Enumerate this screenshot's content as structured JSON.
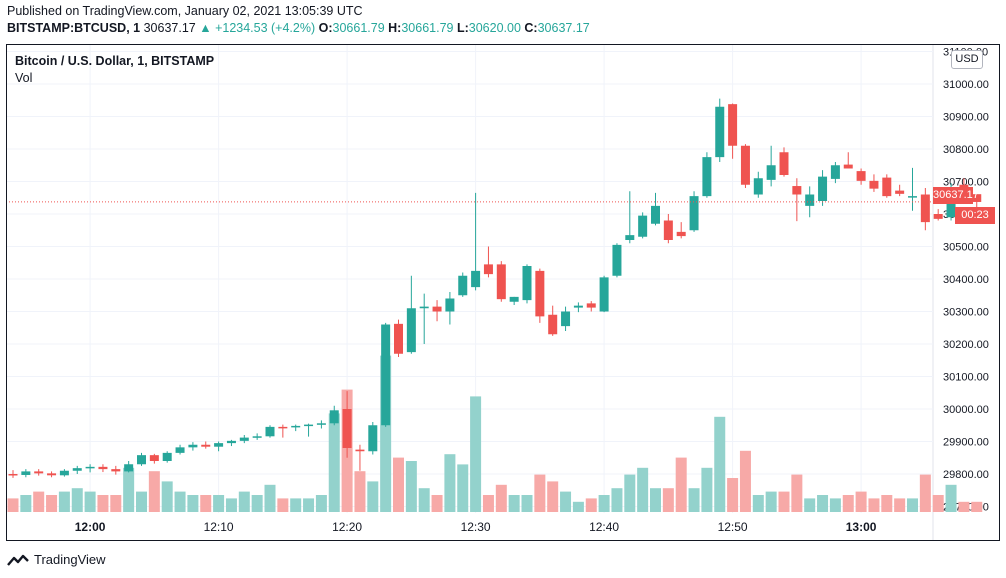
{
  "header": {
    "published": "Published on TradingView.com, January 02, 2021 13:05:39 UTC",
    "symbol": "BITSTAMP:BTCUSD, 1",
    "last": "30637.17",
    "change": "▲ +1234.53 (+4.2%)",
    "o_label": "O:",
    "o": "30661.79",
    "h_label": "H:",
    "h": "30661.79",
    "l_label": "L:",
    "l": "30620.00",
    "c_label": "C:",
    "c": "30637.17"
  },
  "legend": {
    "title": "Bitcoin / U.S. Dollar, 1, BITSTAMP",
    "volume": "Vol"
  },
  "axis": {
    "currency": "USD",
    "price_tag": "30637.17",
    "countdown": "00:23"
  },
  "footer": {
    "brand": "TradingView"
  },
  "colors": {
    "up": "#26a69a",
    "down": "#ef5350",
    "up_vol": "#93d2cc",
    "down_vol": "#f7a9a7"
  },
  "chart_data": {
    "type": "candlestick",
    "yticks": [
      "31100.00",
      "31000.00",
      "30900.00",
      "30800.00",
      "30700.00",
      "30600.00",
      "30500.00",
      "30400.00",
      "30300.00",
      "30200.00",
      "30100.00",
      "30000.00",
      "29900.00",
      "29800.00",
      "29700.00"
    ],
    "xticks": [
      "12:00",
      "12:10",
      "12:20",
      "12:30",
      "12:40",
      "12:50",
      "13:00"
    ],
    "xtick_bold": [
      "12:00",
      "13:00"
    ],
    "ylim": [
      29680,
      31120
    ],
    "candles": [
      {
        "o": 29800,
        "h": 29812,
        "l": 29788,
        "c": 29797,
        "v": 0.4
      },
      {
        "o": 29797,
        "h": 29815,
        "l": 29790,
        "c": 29808,
        "v": 0.5
      },
      {
        "o": 29808,
        "h": 29815,
        "l": 29795,
        "c": 29802,
        "v": 0.6
      },
      {
        "o": 29802,
        "h": 29808,
        "l": 29790,
        "c": 29796,
        "v": 0.5
      },
      {
        "o": 29796,
        "h": 29815,
        "l": 29792,
        "c": 29810,
        "v": 0.6
      },
      {
        "o": 29810,
        "h": 29825,
        "l": 29800,
        "c": 29818,
        "v": 0.7
      },
      {
        "o": 29818,
        "h": 29830,
        "l": 29805,
        "c": 29822,
        "v": 0.6
      },
      {
        "o": 29822,
        "h": 29830,
        "l": 29806,
        "c": 29815,
        "v": 0.5
      },
      {
        "o": 29815,
        "h": 29825,
        "l": 29798,
        "c": 29808,
        "v": 0.5
      },
      {
        "o": 29808,
        "h": 29840,
        "l": 29805,
        "c": 29830,
        "v": 1.3
      },
      {
        "o": 29830,
        "h": 29865,
        "l": 29825,
        "c": 29858,
        "v": 0.6
      },
      {
        "o": 29858,
        "h": 29862,
        "l": 29832,
        "c": 29840,
        "v": 1.2
      },
      {
        "o": 29840,
        "h": 29870,
        "l": 29835,
        "c": 29865,
        "v": 0.9
      },
      {
        "o": 29865,
        "h": 29890,
        "l": 29860,
        "c": 29882,
        "v": 0.6
      },
      {
        "o": 29882,
        "h": 29898,
        "l": 29872,
        "c": 29890,
        "v": 0.5
      },
      {
        "o": 29890,
        "h": 29900,
        "l": 29878,
        "c": 29884,
        "v": 0.5
      },
      {
        "o": 29884,
        "h": 29900,
        "l": 29870,
        "c": 29895,
        "v": 0.5
      },
      {
        "o": 29895,
        "h": 29905,
        "l": 29886,
        "c": 29902,
        "v": 0.4
      },
      {
        "o": 29902,
        "h": 29920,
        "l": 29895,
        "c": 29912,
        "v": 0.6
      },
      {
        "o": 29912,
        "h": 29925,
        "l": 29905,
        "c": 29916,
        "v": 0.5
      },
      {
        "o": 29916,
        "h": 29950,
        "l": 29912,
        "c": 29945,
        "v": 0.8
      },
      {
        "o": 29945,
        "h": 29952,
        "l": 29912,
        "c": 29944,
        "v": 0.4
      },
      {
        "o": 29944,
        "h": 29952,
        "l": 29932,
        "c": 29948,
        "v": 0.4
      },
      {
        "o": 29948,
        "h": 29955,
        "l": 29915,
        "c": 29952,
        "v": 0.4
      },
      {
        "o": 29952,
        "h": 29965,
        "l": 29940,
        "c": 29956,
        "v": 0.5
      },
      {
        "o": 29956,
        "h": 30010,
        "l": 29950,
        "c": 29996,
        "v": 2.9
      },
      {
        "o": 30000,
        "h": 30055,
        "l": 29850,
        "c": 29880,
        "v": 3.6
      },
      {
        "o": 29875,
        "h": 29890,
        "l": 29810,
        "c": 29870,
        "v": 1.2
      },
      {
        "o": 29870,
        "h": 29960,
        "l": 29860,
        "c": 29950,
        "v": 0.9
      },
      {
        "o": 29950,
        "h": 30265,
        "l": 29945,
        "c": 30260,
        "v": 4.6
      },
      {
        "o": 30262,
        "h": 30275,
        "l": 30160,
        "c": 30170,
        "v": 1.6
      },
      {
        "o": 30175,
        "h": 30410,
        "l": 30170,
        "c": 30310,
        "v": 1.5
      },
      {
        "o": 30310,
        "h": 30355,
        "l": 30200,
        "c": 30315,
        "v": 0.7
      },
      {
        "o": 30315,
        "h": 30335,
        "l": 30270,
        "c": 30300,
        "v": 0.5
      },
      {
        "o": 30300,
        "h": 30360,
        "l": 30260,
        "c": 30340,
        "v": 1.7
      },
      {
        "o": 30350,
        "h": 30420,
        "l": 30345,
        "c": 30410,
        "v": 1.4
      },
      {
        "o": 30375,
        "h": 30665,
        "l": 30365,
        "c": 30425,
        "v": 3.4
      },
      {
        "o": 30445,
        "h": 30500,
        "l": 30405,
        "c": 30415,
        "v": 0.5
      },
      {
        "o": 30445,
        "h": 30455,
        "l": 30330,
        "c": 30338,
        "v": 0.8
      },
      {
        "o": 30330,
        "h": 30345,
        "l": 30320,
        "c": 30345,
        "v": 0.5
      },
      {
        "o": 30335,
        "h": 30445,
        "l": 30325,
        "c": 30440,
        "v": 0.5
      },
      {
        "o": 30425,
        "h": 30432,
        "l": 30265,
        "c": 30285,
        "v": 1.1
      },
      {
        "o": 30290,
        "h": 30318,
        "l": 30225,
        "c": 30230,
        "v": 0.9
      },
      {
        "o": 30255,
        "h": 30315,
        "l": 30240,
        "c": 30300,
        "v": 0.6
      },
      {
        "o": 30312,
        "h": 30328,
        "l": 30298,
        "c": 30318,
        "v": 0.3
      },
      {
        "o": 30325,
        "h": 30332,
        "l": 30300,
        "c": 30312,
        "v": 0.4
      },
      {
        "o": 30300,
        "h": 30410,
        "l": 30298,
        "c": 30405,
        "v": 0.5
      },
      {
        "o": 30410,
        "h": 30510,
        "l": 30405,
        "c": 30505,
        "v": 0.7
      },
      {
        "o": 30520,
        "h": 30670,
        "l": 30510,
        "c": 30535,
        "v": 1.1
      },
      {
        "o": 30530,
        "h": 30605,
        "l": 30525,
        "c": 30595,
        "v": 1.3
      },
      {
        "o": 30570,
        "h": 30665,
        "l": 30565,
        "c": 30625,
        "v": 0.7
      },
      {
        "o": 30580,
        "h": 30600,
        "l": 30510,
        "c": 30520,
        "v": 0.7
      },
      {
        "o": 30545,
        "h": 30575,
        "l": 30525,
        "c": 30532,
        "v": 1.6
      },
      {
        "o": 30550,
        "h": 30670,
        "l": 30545,
        "c": 30655,
        "v": 0.7
      },
      {
        "o": 30655,
        "h": 30790,
        "l": 30650,
        "c": 30775,
        "v": 1.3
      },
      {
        "o": 30775,
        "h": 30955,
        "l": 30760,
        "c": 30930,
        "v": 2.8
      },
      {
        "o": 30938,
        "h": 30940,
        "l": 30770,
        "c": 30810,
        "v": 1.0
      },
      {
        "o": 30810,
        "h": 30815,
        "l": 30680,
        "c": 30690,
        "v": 1.8
      },
      {
        "o": 30660,
        "h": 30730,
        "l": 30650,
        "c": 30710,
        "v": 0.5
      },
      {
        "o": 30705,
        "h": 30810,
        "l": 30685,
        "c": 30750,
        "v": 0.6
      },
      {
        "o": 30790,
        "h": 30805,
        "l": 30715,
        "c": 30720,
        "v": 0.6
      },
      {
        "o": 30686,
        "h": 30710,
        "l": 30578,
        "c": 30660,
        "v": 1.1
      },
      {
        "o": 30625,
        "h": 30685,
        "l": 30590,
        "c": 30660,
        "v": 0.4
      },
      {
        "o": 30640,
        "h": 30735,
        "l": 30625,
        "c": 30715,
        "v": 0.5
      },
      {
        "o": 30708,
        "h": 30760,
        "l": 30695,
        "c": 30750,
        "v": 0.4
      },
      {
        "o": 30752,
        "h": 30790,
        "l": 30740,
        "c": 30740,
        "v": 0.5
      },
      {
        "o": 30732,
        "h": 30740,
        "l": 30690,
        "c": 30702,
        "v": 0.6
      },
      {
        "o": 30702,
        "h": 30722,
        "l": 30668,
        "c": 30678,
        "v": 0.4
      },
      {
        "o": 30712,
        "h": 30722,
        "l": 30650,
        "c": 30655,
        "v": 0.5
      },
      {
        "o": 30672,
        "h": 30690,
        "l": 30655,
        "c": 30662,
        "v": 0.4
      },
      {
        "o": 30655,
        "h": 30742,
        "l": 30610,
        "c": 30655,
        "v": 0.4
      },
      {
        "o": 30660,
        "h": 30680,
        "l": 30550,
        "c": 30575,
        "v": 1.1
      },
      {
        "o": 30600,
        "h": 30615,
        "l": 30580,
        "c": 30585,
        "v": 0.5
      },
      {
        "o": 30590,
        "h": 30695,
        "l": 30580,
        "c": 30680,
        "v": 0.8
      },
      {
        "o": 30690,
        "h": 30710,
        "l": 30660,
        "c": 30665,
        "v": 0.3
      },
      {
        "o": 30661,
        "h": 30661,
        "l": 30620,
        "c": 30637,
        "v": 0.3
      }
    ]
  }
}
